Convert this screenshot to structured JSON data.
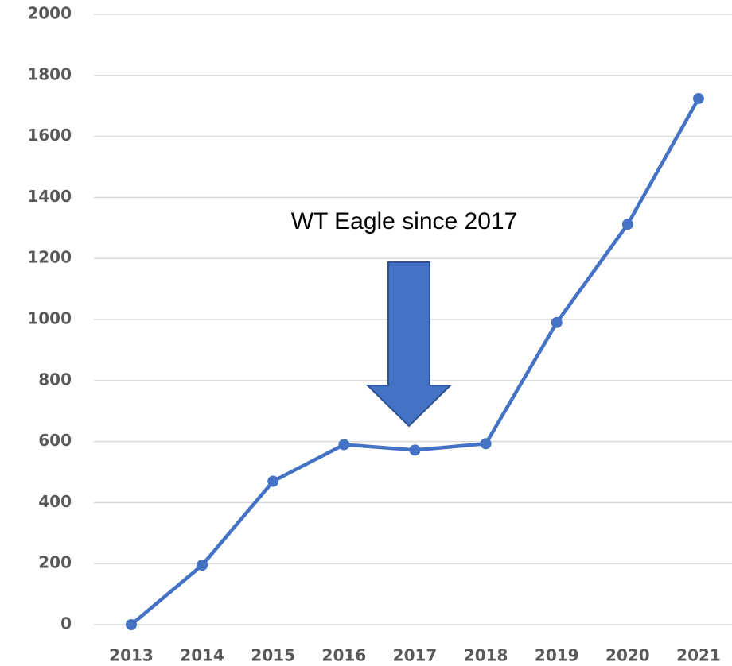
{
  "chart_data": {
    "type": "line",
    "annotation": "WT Eagle since 2017",
    "categories": [
      "2013",
      "2014",
      "2015",
      "2016",
      "2017",
      "2018",
      "2019",
      "2020",
      "2021"
    ],
    "values": [
      0,
      195,
      470,
      590,
      572,
      593,
      990,
      1312,
      1724
    ],
    "color": "#4472c4",
    "ylim": [
      0,
      2000
    ],
    "yticks": [
      0,
      200,
      400,
      600,
      800,
      1000,
      1200,
      1400,
      1600,
      1800,
      2000
    ],
    "grid": true
  }
}
